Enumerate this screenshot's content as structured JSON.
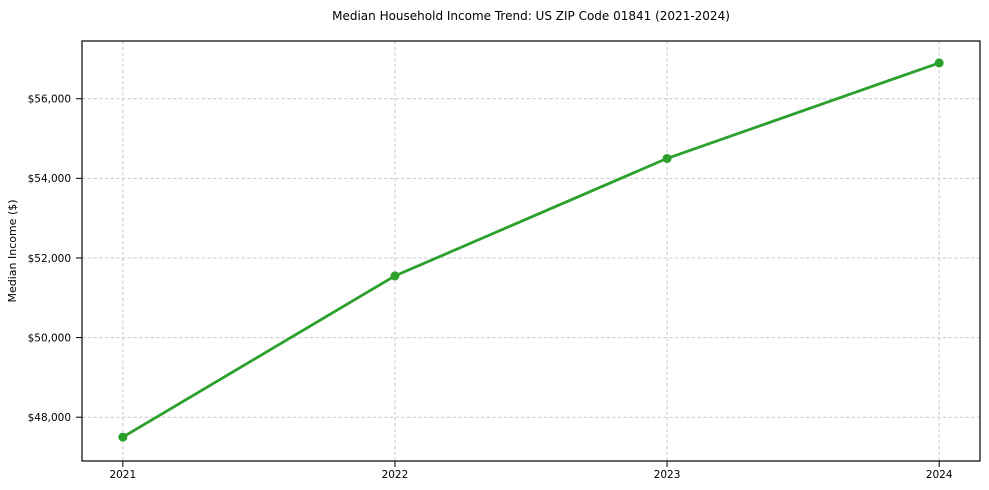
{
  "chart_data": {
    "type": "line",
    "title": "Median Household Income Trend: US ZIP Code 01841 (2021-2024)",
    "xlabel": "",
    "ylabel": "Median Income ($)",
    "series_name": "Median household income",
    "x": [
      2021,
      2022,
      2023,
      2024
    ],
    "values": [
      47500,
      51550,
      54500,
      56900
    ],
    "xtick_labels": [
      "2021",
      "2022",
      "2023",
      "2024"
    ],
    "yticks": [
      48000,
      50000,
      52000,
      54000,
      56000
    ],
    "ytick_labels": [
      "$48,000",
      "$50,000",
      "$52,000",
      "$54,000",
      "$56,000"
    ],
    "xlim": [
      2020.85,
      2024.15
    ],
    "ylim": [
      46900,
      57450
    ],
    "grid": true,
    "legend_position": "none",
    "line_color": "#2ca02c",
    "marker_color": "#2ca02c",
    "grid_color": "#cccccc",
    "axis_color": "#000000",
    "background_color": "#ffffff"
  }
}
